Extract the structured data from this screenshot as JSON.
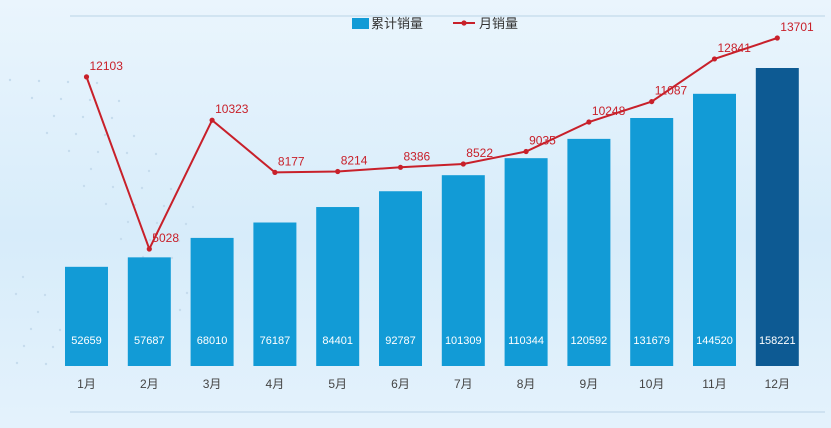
{
  "chart_data": {
    "type": "bar",
    "categories": [
      "1月",
      "2月",
      "3月",
      "4月",
      "5月",
      "6月",
      "7月",
      "8月",
      "9月",
      "10月",
      "11月",
      "12月"
    ],
    "series": [
      {
        "name": "累计销量",
        "type": "bar",
        "values": [
          52659,
          57687,
          68010,
          76187,
          84401,
          92787,
          101309,
          110344,
          120592,
          131679,
          144520,
          158221
        ]
      },
      {
        "name": "月销量",
        "type": "line",
        "values": [
          12103,
          5028,
          10323,
          8177,
          8214,
          8386,
          8522,
          9035,
          10248,
          11087,
          12841,
          13701
        ]
      }
    ],
    "legend": {
      "position": "top-center"
    },
    "grid": false,
    "colors": {
      "bar": "#129bd6",
      "bar_highlight": "#0d5a93",
      "line": "#c8202a"
    }
  }
}
